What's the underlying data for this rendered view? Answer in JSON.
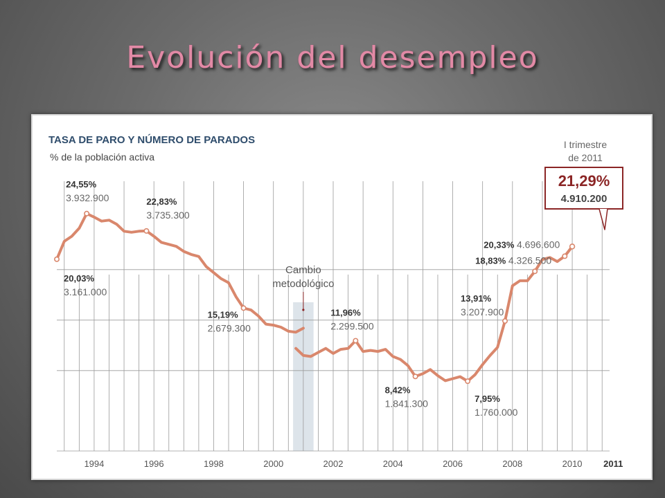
{
  "slide_title": "Evolución del desempleo",
  "chart_data": {
    "type": "line",
    "title": "TASA DE PARO Y NÚMERO DE PARADOS",
    "subtitle": "% de la población activa",
    "ylabel": "",
    "xlabel": "",
    "grid": true,
    "ylim": [
      5,
      27
    ],
    "xlim": [
      1992.75,
      2011.25
    ],
    "x_ticks": [
      "1994",
      "1996",
      "1998",
      "2000",
      "2002",
      "2004",
      "2006",
      "2008",
      "2010",
      "2011"
    ],
    "colors": {
      "line": "#d9876c",
      "band": "#dde4ea",
      "callout": "#8b2525"
    },
    "series": [
      {
        "segment": "before-2001",
        "points": [
          [
            1992.75,
            20.03
          ],
          [
            1993.0,
            21.8
          ],
          [
            1993.25,
            22.3
          ],
          [
            1993.5,
            23.1
          ],
          [
            1993.75,
            24.55
          ],
          [
            1994.0,
            24.2
          ],
          [
            1994.25,
            23.8
          ],
          [
            1994.5,
            23.9
          ],
          [
            1994.75,
            23.5
          ],
          [
            1995.0,
            22.8
          ],
          [
            1995.25,
            22.7
          ],
          [
            1995.5,
            22.8
          ],
          [
            1995.75,
            22.83
          ],
          [
            1996.0,
            22.3
          ],
          [
            1996.25,
            21.7
          ],
          [
            1996.5,
            21.5
          ],
          [
            1996.75,
            21.3
          ],
          [
            1997.0,
            20.8
          ],
          [
            1997.25,
            20.5
          ],
          [
            1997.5,
            20.3
          ],
          [
            1997.75,
            19.3
          ],
          [
            1998.0,
            18.7
          ],
          [
            1998.25,
            18.1
          ],
          [
            1998.5,
            17.7
          ],
          [
            1998.75,
            16.3
          ],
          [
            1999.0,
            15.19
          ],
          [
            1999.25,
            15.0
          ],
          [
            1999.5,
            14.4
          ],
          [
            1999.75,
            13.6
          ],
          [
            2000.0,
            13.5
          ],
          [
            2000.25,
            13.3
          ],
          [
            2000.5,
            12.9
          ],
          [
            2000.75,
            12.8
          ],
          [
            2001.0,
            13.2
          ]
        ]
      },
      {
        "segment": "after-2001",
        "points": [
          [
            2000.75,
            11.2
          ],
          [
            2001.0,
            10.5
          ],
          [
            2001.25,
            10.4
          ],
          [
            2001.5,
            10.8
          ],
          [
            2001.75,
            11.2
          ],
          [
            2002.0,
            10.7
          ],
          [
            2002.25,
            11.1
          ],
          [
            2002.5,
            11.2
          ],
          [
            2002.75,
            11.96
          ],
          [
            2003.0,
            10.9
          ],
          [
            2003.25,
            11.0
          ],
          [
            2003.5,
            10.9
          ],
          [
            2003.75,
            11.1
          ],
          [
            2004.0,
            10.4
          ],
          [
            2004.25,
            10.1
          ],
          [
            2004.5,
            9.5
          ],
          [
            2004.75,
            8.42
          ],
          [
            2005.0,
            8.7
          ],
          [
            2005.25,
            9.1
          ],
          [
            2005.5,
            8.5
          ],
          [
            2005.75,
            8.0
          ],
          [
            2006.0,
            8.2
          ],
          [
            2006.25,
            8.4
          ],
          [
            2006.5,
            7.95
          ],
          [
            2006.75,
            8.6
          ],
          [
            2007.0,
            9.6
          ],
          [
            2007.25,
            10.5
          ],
          [
            2007.5,
            11.3
          ],
          [
            2007.75,
            13.91
          ],
          [
            2008.0,
            17.4
          ],
          [
            2008.25,
            17.9
          ],
          [
            2008.5,
            17.9
          ],
          [
            2008.75,
            18.83
          ],
          [
            2009.0,
            20.0
          ],
          [
            2009.25,
            20.2
          ],
          [
            2009.5,
            19.8
          ],
          [
            2009.75,
            20.33
          ],
          [
            2010.0,
            21.29
          ]
        ]
      }
    ],
    "annotations": [
      {
        "x": 1992.75,
        "y": 20.03,
        "pct": "20,03%",
        "count": "3.161.000"
      },
      {
        "x": 1993.75,
        "y": 24.55,
        "pct": "24,55%",
        "count": "3.932.900"
      },
      {
        "x": 1995.75,
        "y": 22.83,
        "pct": "22,83%",
        "count": "3.735.300"
      },
      {
        "x": 1999.0,
        "y": 15.19,
        "pct": "15,19%",
        "count": "2.679.300"
      },
      {
        "x": 2002.75,
        "y": 11.96,
        "pct": "11,96%",
        "count": "2.299.500"
      },
      {
        "x": 2004.75,
        "y": 8.42,
        "pct": "8,42%",
        "count": "1.841.300"
      },
      {
        "x": 2006.5,
        "y": 7.95,
        "pct": "7,95%",
        "count": "1.760.000"
      },
      {
        "x": 2007.75,
        "y": 13.91,
        "pct": "13,91%",
        "count": "3.207.900"
      },
      {
        "x": 2008.75,
        "y": 18.83,
        "pct": "18,83%",
        "count": "4.326.500"
      },
      {
        "x": 2009.75,
        "y": 20.33,
        "pct": "20,33%",
        "count": "4.696.600"
      }
    ],
    "methodology_note": [
      "Cambio",
      "metodológico"
    ],
    "latest_label": [
      "I trimestre",
      "de 2011"
    ],
    "latest": {
      "x": 2010.0,
      "y": 21.29,
      "pct": "21,29%",
      "count": "4.910.200"
    }
  }
}
